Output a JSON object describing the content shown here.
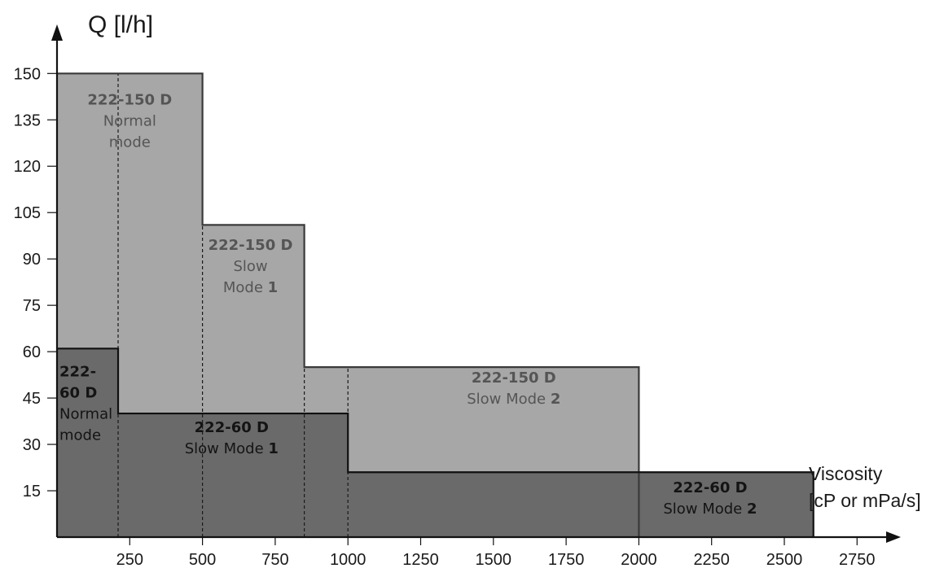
{
  "chart_data": {
    "type": "area",
    "title": "",
    "xlabel": [
      "Viscosity",
      "[cP or mPa/s]"
    ],
    "ylabel": "Q [l/h]",
    "xlim": [
      0,
      2850
    ],
    "ylim": [
      0,
      160
    ],
    "x_ticks": [
      250,
      500,
      750,
      1000,
      1250,
      1500,
      1750,
      2000,
      2250,
      2500,
      2750
    ],
    "y_ticks": [
      15,
      30,
      45,
      60,
      75,
      90,
      105,
      120,
      135,
      150
    ],
    "grid": false,
    "colors": {
      "series_150": "#a7a7a7",
      "series_150_label": "#555555",
      "series_60": "#6a6a6a",
      "series_60_label": "#141414",
      "outline_150": "#3a3a3a",
      "outline_60": "#111111"
    },
    "series": [
      {
        "id": "222-150 D",
        "steps": [
          {
            "x0": 0,
            "x1": 500,
            "y": 150
          },
          {
            "x0": 500,
            "x1": 850,
            "y": 101
          },
          {
            "x0": 850,
            "x1": 2000,
            "y": 55
          }
        ]
      },
      {
        "id": "222-60 D",
        "steps": [
          {
            "x0": 0,
            "x1": 210,
            "y": 61
          },
          {
            "x0": 210,
            "x1": 1000,
            "y": 40
          },
          {
            "x0": 1000,
            "x1": 2600,
            "y": 21
          }
        ]
      }
    ],
    "dashed_dividers": [
      210,
      500,
      850,
      1000
    ],
    "annotations": [
      {
        "series": "150",
        "x": 250,
        "y": 140,
        "lines": [
          {
            "t": "222-150 D",
            "bold": true
          },
          {
            "t": "Normal"
          },
          {
            "t": "mode"
          }
        ]
      },
      {
        "series": "150",
        "x": 665,
        "y": 93,
        "lines": [
          {
            "t": "222-150 D",
            "bold": true
          },
          {
            "t": "Slow"
          },
          {
            "t": "Mode ",
            "bold_suffix": "1"
          }
        ]
      },
      {
        "series": "150",
        "x": 1570,
        "y": 50,
        "lines": [
          {
            "t": "222-150 D",
            "bold": true
          },
          {
            "t": "Slow Mode ",
            "bold_suffix": "2"
          }
        ]
      },
      {
        "series": "60",
        "x": 10,
        "y": 52,
        "anchor": "start",
        "lines": [
          {
            "t": "222-",
            "bold": true
          },
          {
            "t": "60 D",
            "bold": true
          },
          {
            "t": "Normal"
          },
          {
            "t": "mode"
          }
        ]
      },
      {
        "series": "60",
        "x": 600,
        "y": 34,
        "lines": [
          {
            "t": "222-60 D",
            "bold": true
          },
          {
            "t": "Slow Mode ",
            "bold_suffix": "1"
          }
        ]
      },
      {
        "series": "60",
        "x": 2245,
        "y": 14.5,
        "lines": [
          {
            "t": "222-60 D",
            "bold": true
          },
          {
            "t": "Slow Mode ",
            "bold_suffix": "2"
          }
        ]
      }
    ]
  }
}
